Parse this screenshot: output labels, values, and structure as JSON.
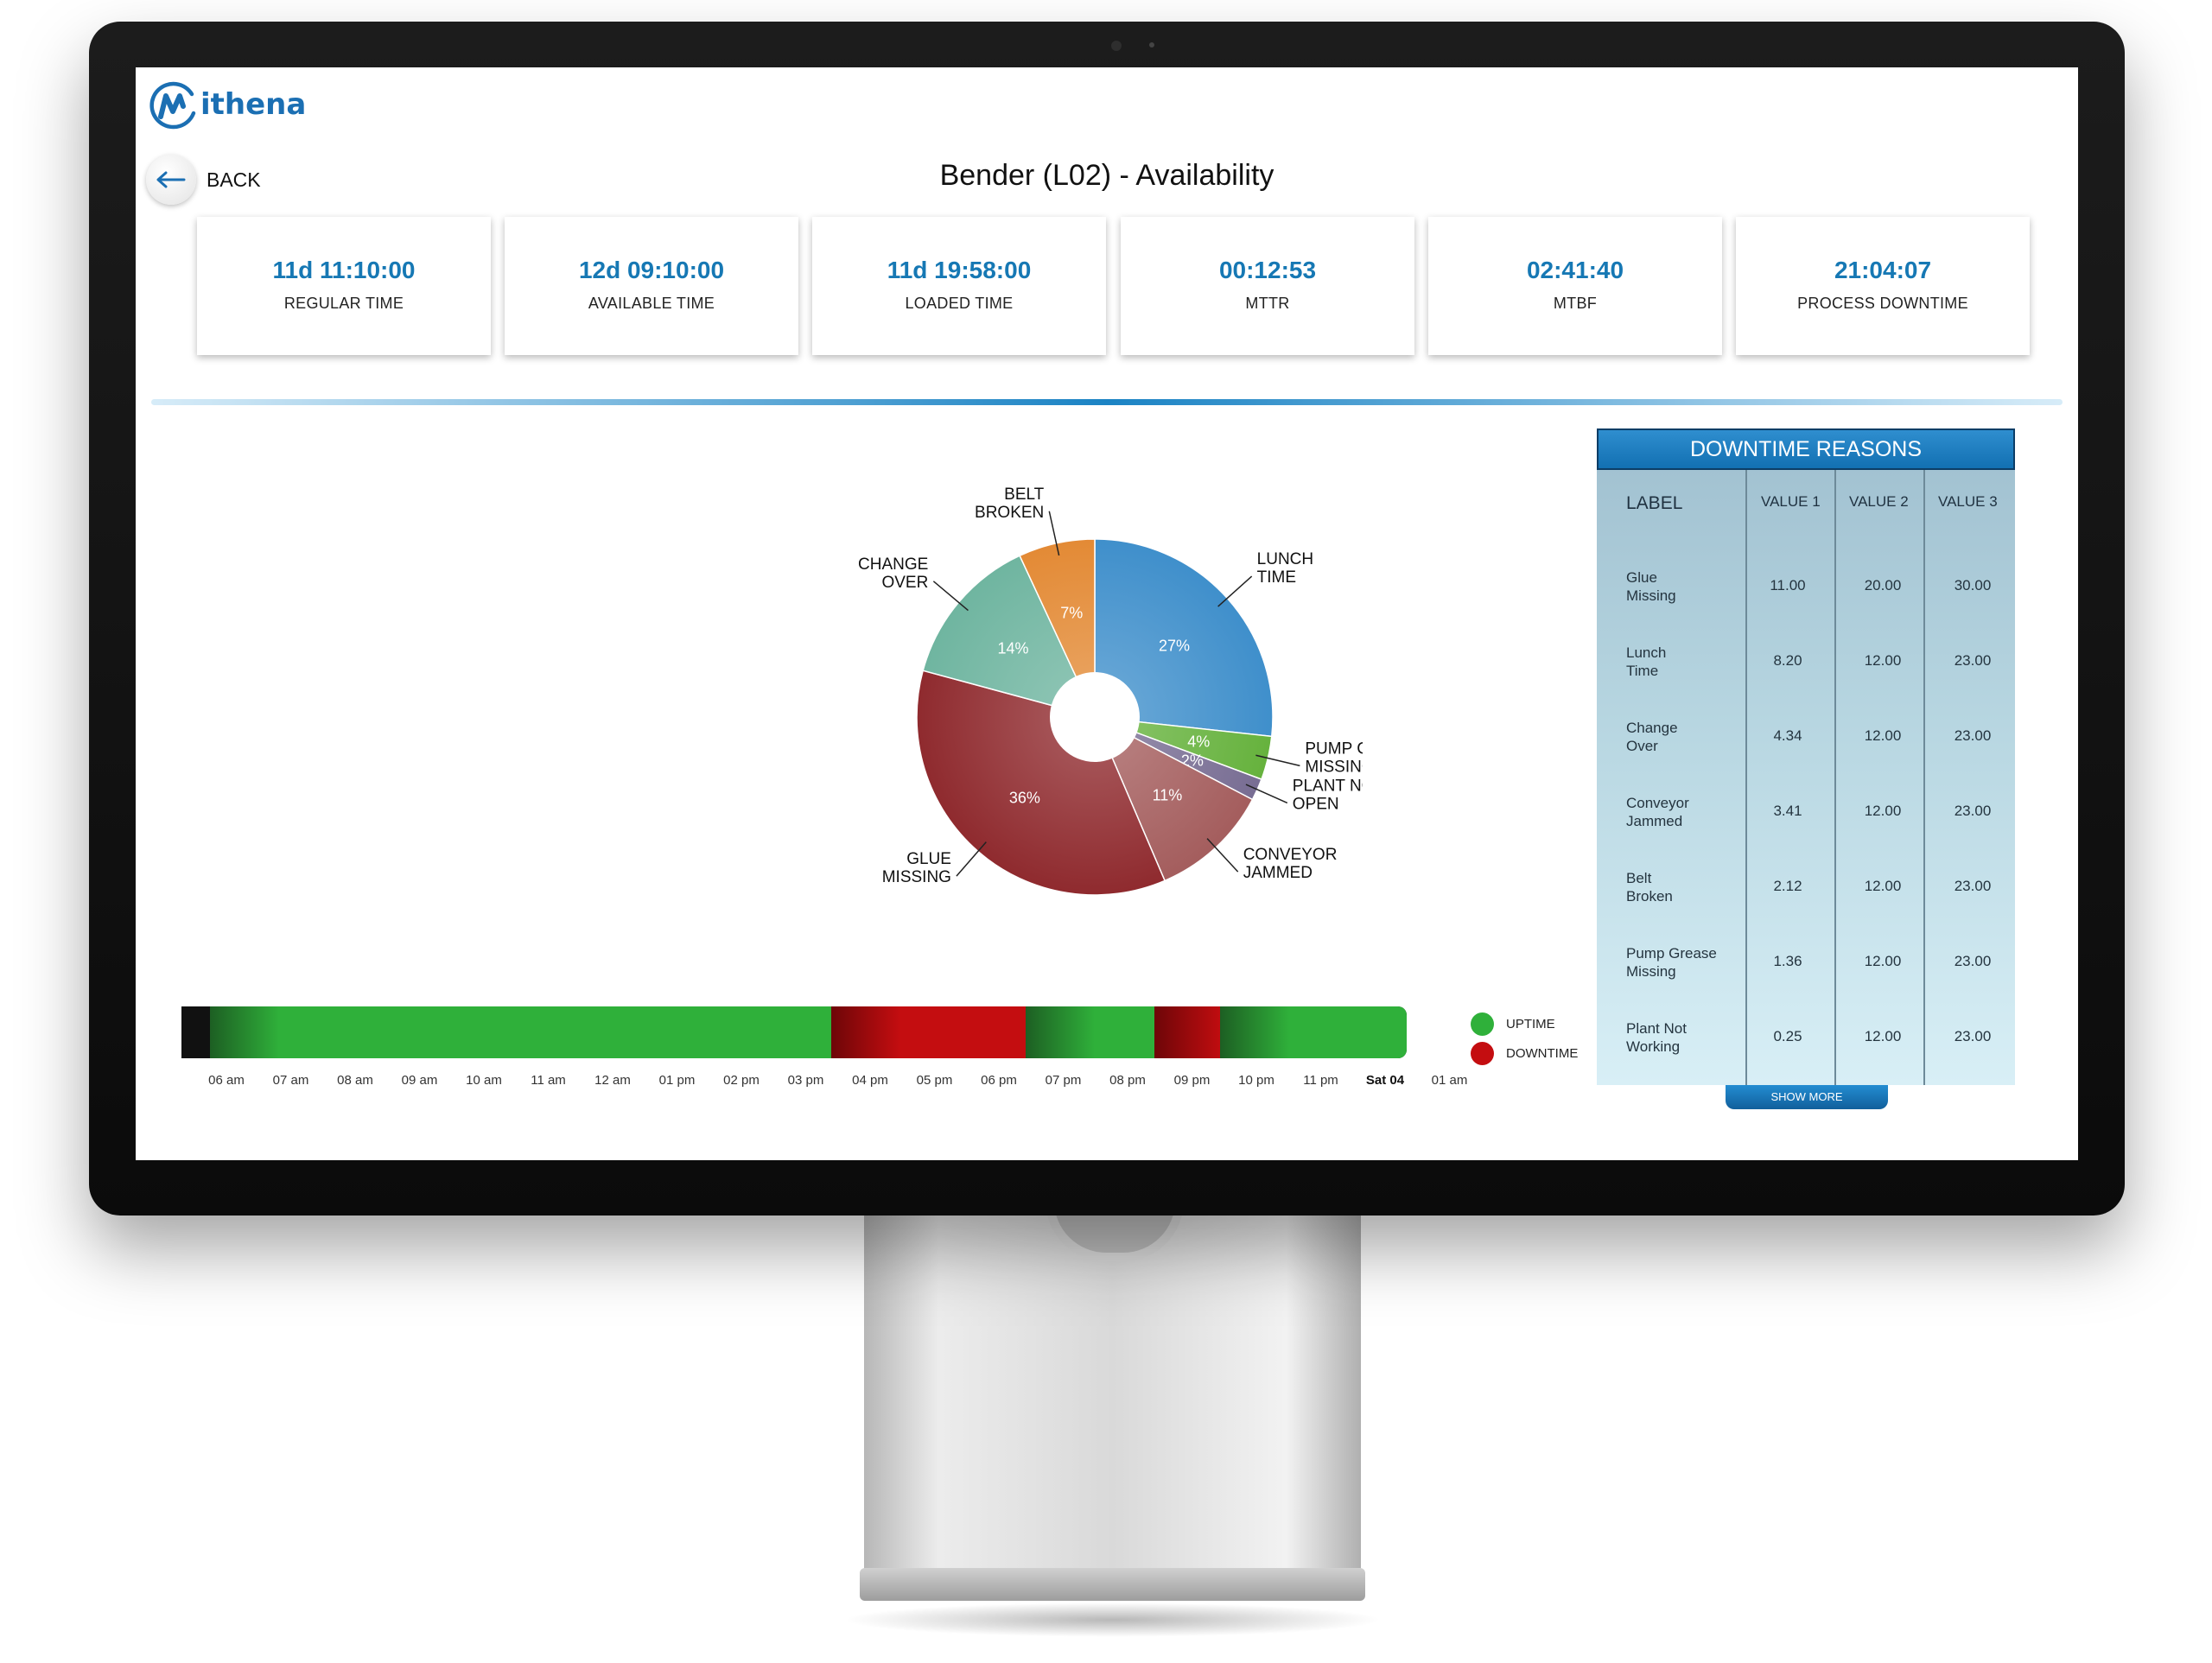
{
  "app": {
    "logo_text": "ithena"
  },
  "nav": {
    "back_label": "BACK"
  },
  "page": {
    "title": "Bender (L02)  -  Availability"
  },
  "kpis": [
    {
      "value": "11d 11:10:00",
      "label": "REGULAR TIME"
    },
    {
      "value": "12d 09:10:00",
      "label": "AVAILABLE TIME"
    },
    {
      "value": "11d 19:58:00",
      "label": "LOADED TIME"
    },
    {
      "value": "00:12:53",
      "label": "MTTR"
    },
    {
      "value": "02:41:40",
      "label": "MTBF"
    },
    {
      "value": "21:04:07",
      "label": "PROCESS DOWNTIME"
    }
  ],
  "chart_data": [
    {
      "type": "pie",
      "donut": true,
      "slices": [
        {
          "label": [
            "LUNCH",
            "TIME"
          ],
          "value": 27,
          "pct_label": "27%",
          "color": "#3f8fcb"
        },
        {
          "label": [
            "PUMP CREASE",
            "MISSING"
          ],
          "value": 4,
          "pct_label": "4%",
          "color": "#66b23d"
        },
        {
          "label": [
            "PLANT NOT",
            "OPEN"
          ],
          "value": 2,
          "pct_label": "2%",
          "color": "#786d93"
        },
        {
          "label": [
            "CONVEYOR",
            "JAMMED"
          ],
          "value": 11,
          "pct_label": "11%",
          "color": "#a45d5d"
        },
        {
          "label": [
            "GLUE",
            "MISSING"
          ],
          "value": 36,
          "pct_label": "36%",
          "color": "#8f2a2e"
        },
        {
          "label": [
            "CHANGE",
            "OVER"
          ],
          "value": 14,
          "pct_label": "14%",
          "color": "#6fb5a0"
        },
        {
          "label": [
            "BELT",
            "BROKEN"
          ],
          "value": 7,
          "pct_label": "7%",
          "color": "#e38a35"
        }
      ]
    },
    {
      "type": "timeline",
      "x_ticks": [
        "06 am",
        "07 am",
        "08 am",
        "09 am",
        "10 am",
        "11 am",
        "12 am",
        "01 pm",
        "02 pm",
        "03 pm",
        "04 pm",
        "05 pm",
        "06 pm",
        "07 pm",
        "08 pm",
        "09 pm",
        "10 pm",
        "11 pm",
        "Sat 04",
        "01 am"
      ],
      "bold_tick": "Sat 04",
      "segments": [
        {
          "state": "uptime",
          "start_hour": 5.75,
          "end_hour": 15.4
        },
        {
          "state": "downtime",
          "start_hour": 15.4,
          "end_hour": 18.42
        },
        {
          "state": "uptime",
          "start_hour": 18.42,
          "end_hour": 20.42
        },
        {
          "state": "downtime",
          "start_hour": 20.42,
          "end_hour": 21.44
        },
        {
          "state": "uptime",
          "start_hour": 21.44,
          "end_hour": 24.9
        }
      ],
      "legend": [
        {
          "label": "UPTIME",
          "color": "#2fb03a"
        },
        {
          "label": "DOWNTIME",
          "color": "#c40d10"
        }
      ]
    }
  ],
  "downtime_table": {
    "title": "DOWNTIME REASONS",
    "columns": [
      "LABEL",
      "VALUE 1",
      "VALUE 2",
      "VALUE 3"
    ],
    "rows": [
      {
        "label": [
          "Glue",
          "Missing"
        ],
        "v1": "11.00",
        "v2": "20.00",
        "v3": "30.00"
      },
      {
        "label": [
          "Lunch",
          "Time"
        ],
        "v1": "8.20",
        "v2": "12.00",
        "v3": "23.00"
      },
      {
        "label": [
          "Change",
          "Over"
        ],
        "v1": "4.34",
        "v2": "12.00",
        "v3": "23.00"
      },
      {
        "label": [
          "Conveyor",
          "Jammed"
        ],
        "v1": "3.41",
        "v2": "12.00",
        "v3": "23.00"
      },
      {
        "label": [
          "Belt",
          "Broken"
        ],
        "v1": "2.12",
        "v2": "12.00",
        "v3": "23.00"
      },
      {
        "label": [
          "Pump Grease",
          "Missing"
        ],
        "v1": "1.36",
        "v2": "12.00",
        "v3": "23.00"
      },
      {
        "label": [
          "Plant Not",
          "Working"
        ],
        "v1": "0.25",
        "v2": "12.00",
        "v3": "23.00"
      }
    ],
    "show_more_label": "SHOW MORE"
  }
}
